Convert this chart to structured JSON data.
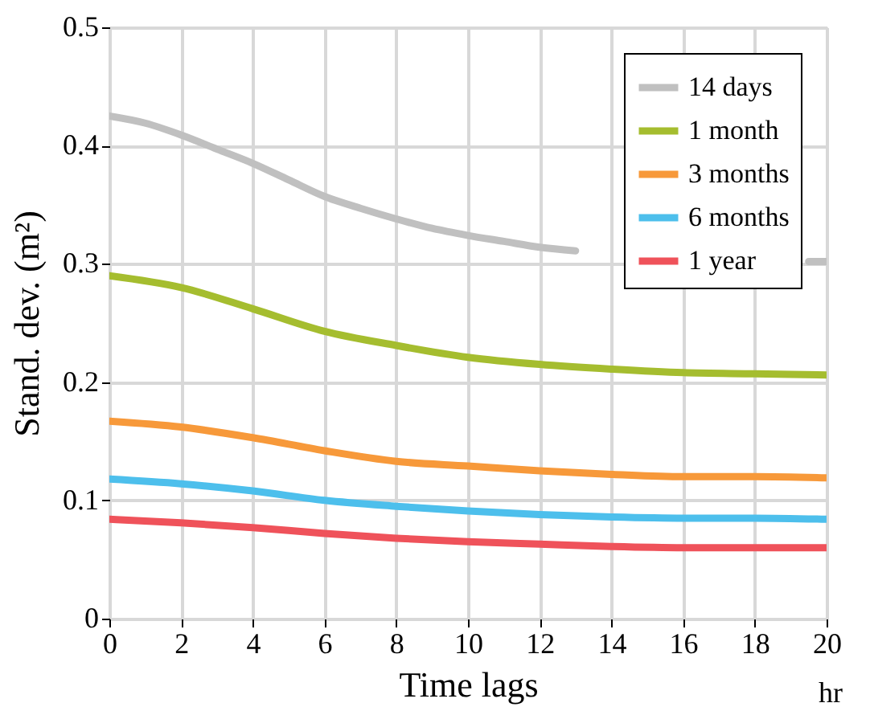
{
  "chart_data": {
    "type": "line",
    "xlabel": "Time lags",
    "ylabel": "Stand. dev. (m²)",
    "annotations": [
      "hr"
    ],
    "x": [
      0,
      2,
      4,
      6,
      8,
      10,
      12,
      14,
      16,
      18,
      20
    ],
    "series": [
      {
        "name": "14 days",
        "color": "#c0c0c0",
        "x": [
          0,
          1,
          2,
          3,
          4,
          5,
          6,
          7,
          8,
          9,
          10,
          11,
          12,
          13,
          16,
          19.5,
          20
        ],
        "values": [
          0.425,
          0.419,
          0.409,
          0.397,
          0.385,
          0.371,
          0.357,
          0.347,
          0.338,
          0.33,
          0.324,
          0.319,
          0.314,
          0.311,
          null,
          0.302,
          0.302
        ]
      },
      {
        "name": "1 month",
        "color": "#a5bd2f",
        "values": [
          0.29,
          0.28,
          0.262,
          0.243,
          0.231,
          0.221,
          0.215,
          0.211,
          0.208,
          0.207,
          0.206
        ]
      },
      {
        "name": "3 months",
        "color": "#f7993a",
        "values": [
          0.167,
          0.162,
          0.153,
          0.142,
          0.133,
          0.129,
          0.125,
          0.122,
          0.12,
          0.12,
          0.119
        ]
      },
      {
        "name": "6 months",
        "color": "#4dbfec",
        "values": [
          0.118,
          0.114,
          0.108,
          0.1,
          0.095,
          0.091,
          0.088,
          0.086,
          0.085,
          0.085,
          0.084
        ]
      },
      {
        "name": "1 year",
        "color": "#ef525a",
        "values": [
          0.084,
          0.081,
          0.077,
          0.072,
          0.068,
          0.065,
          0.063,
          0.061,
          0.06,
          0.06,
          0.06
        ]
      }
    ],
    "xlim": [
      0,
      20
    ],
    "xticks": [
      0,
      2,
      4,
      6,
      8,
      10,
      12,
      14,
      16,
      18,
      20
    ],
    "ylim": [
      0,
      0.5
    ],
    "yticks": [
      {
        "value": 0,
        "label": "0"
      },
      0.1,
      0.2,
      0.3,
      0.4,
      0.5
    ],
    "grid": true,
    "legend": "top right",
    "line_style": "solid",
    "marker": "none"
  }
}
